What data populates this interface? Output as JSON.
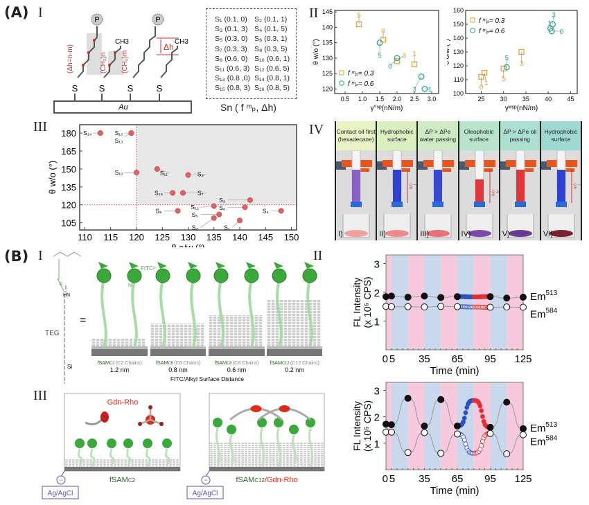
{
  "panel_labels": {
    "A": "(A)",
    "B": "(B)",
    "A_I": "I",
    "A_II": "II",
    "A_III": "III",
    "A_IV": "IV",
    "B_I": "I",
    "B_II": "II",
    "B_III": "III"
  },
  "schematic_A": {
    "substrate": "Au",
    "sulfur": "S",
    "terminal_p": "P",
    "methyl": "CH3",
    "delta_h_formula": "(Δh=n-m)",
    "chain_n": "(CH₂)n",
    "chain_m": "(CH₂)m",
    "delta_h": "Δh"
  },
  "sample_table": {
    "rows": [
      [
        "S₁ (0.1, 0)",
        "S₂ (0.1, 1)"
      ],
      [
        "S₃ (0.1, 3)",
        "S₄ (0.1, 5)"
      ],
      [
        "S₅ (0.3, 0)",
        "S₆ (0.3, 1)"
      ],
      [
        "S₇ (0.3, 3)",
        "S₈ (0.3, 5)"
      ],
      [
        "S₉ (0.6, 0)",
        "S₁₀ (0.6, 1)"
      ],
      [
        "S₁₁ (0.6, 3)",
        "S₁₂ (0.6, 5)"
      ],
      [
        "S₁₃ (0.8 ,0)",
        "S₁₄ (0.8, 1)"
      ],
      [
        "S₁₅ (0.8, 3)",
        "S₁₆ (0.8, 5)"
      ]
    ],
    "caption": "Sn ( f ᵐₚ, Δh)"
  },
  "photo_panel": {
    "columns": [
      {
        "caption": "Contact oil first (hexadecane)",
        "num": "I)",
        "header": "#e8f2c4",
        "liquid": "#8a5fc8",
        "beaker": "#f1a0a0",
        "height": ""
      },
      {
        "caption": "Hydrophobic surface",
        "num": "II)",
        "header": "#dcefc0",
        "liquid": "#2f3fd0",
        "beaker": "#f08a8a",
        "height": "7 cm"
      },
      {
        "caption": "ΔP > ΔPe water passing",
        "num": "III)",
        "header": "#cdeac4",
        "liquid": "#3a48d0",
        "beaker": "#e8707a",
        "height": ""
      },
      {
        "caption": "Oleophobic surface",
        "num": "IV)",
        "header": "#b9e4cc",
        "liquid": "#e0353a",
        "beaker": "#7a4aa8",
        "height": "4 cm"
      },
      {
        "caption": "ΔP > ΔPe oil passing",
        "num": "V)",
        "header": "#abdfd0",
        "liquid": "#e0353a",
        "beaker": "#6a3a90",
        "height": ""
      },
      {
        "caption": "Hydrophobic surface",
        "num": "VI)",
        "header": "#9ed9d2",
        "liquid": "#2f3fd0",
        "beaker": "#7a2030",
        "height": "7 cm"
      }
    ]
  },
  "schematic_B1": {
    "fitc": "FITC²⁻",
    "teg": "TEG",
    "nh": "NH",
    "hn": "HN",
    "s": "S",
    "si": "Si",
    "co2": "CO₂⁻",
    "equals": "=",
    "panels": [
      {
        "name": "fSAM",
        "sub": "C2",
        "chains": "(C2 Chains)",
        "distance": "1.2 nm"
      },
      {
        "name": "fSAM",
        "sub": "C6",
        "chains": "(C6 Chains)",
        "distance": "0.8 nm"
      },
      {
        "name": "fSAM",
        "sub": "C8",
        "chains": "(C8 Chains)",
        "distance": "0.6 nm"
      },
      {
        "name": "fSAM",
        "sub": "C12",
        "chains": "(C12 Chains)",
        "distance": "0.2 nm"
      }
    ],
    "axis_caption": "FITC/Alkyl Surface Distance"
  },
  "schematic_B3": {
    "gdn_rho": "Gdn-Rho",
    "left_caption": "fSAM",
    "left_sub": "C2",
    "right_caption": "fSAM",
    "right_sub": "C12",
    "right_suffix": "/Gdn-Rho",
    "electrode": "Ag/AgCl",
    "minus": "−"
  },
  "colors": {
    "orange": "#e8a23a",
    "teal": "#2aa79a",
    "red_dot": "#e06060",
    "pink_band": "#f7c9dc",
    "blue_band": "#c9d8ec",
    "fitc_green": "#3aa83a",
    "rho_red": "#e03020",
    "blue_dots": "#3050c0",
    "red_dots": "#e03030"
  },
  "chart_data": [
    {
      "id": "A_II_left",
      "type": "scatter",
      "xlabel": "γ°ˢᵖ(nN/m)",
      "ylabel": "θ w/o (°)",
      "xlim": [
        0.2,
        3.2
      ],
      "ylim": [
        118.5,
        145.5
      ],
      "xticks": [
        "0.5",
        "1.0",
        "1.5",
        "2.0",
        "2.5",
        "3.0"
      ],
      "yticks": [
        "120",
        "125",
        "130",
        "135",
        "140",
        "145"
      ],
      "legend": [
        {
          "label": "f ᵐₚ= 0.3",
          "marker": "square"
        },
        {
          "label": "f ᵐₚ= 0.6",
          "marker": "circle"
        }
      ],
      "legend_position": "bottom-left",
      "series": [
        {
          "name": "f=0.3",
          "marker": "square",
          "points": [
            {
              "x": 0.9,
              "y": 141,
              "label": "5",
              "lx": 0.9,
              "ly": 144
            },
            {
              "x": 1.6,
              "y": 136,
              "label": "0",
              "lx": 1.6,
              "ly": 139
            },
            {
              "x": 2.0,
              "y": 129,
              "label": "3",
              "lx": 2.2,
              "ly": 131
            },
            {
              "x": 2.5,
              "y": 128,
              "label": "1",
              "lx": 2.5,
              "ly": 131.5
            }
          ]
        },
        {
          "name": "f=0.6",
          "marker": "circle",
          "points": [
            {
              "x": 1.5,
              "y": 135,
              "label": "5",
              "lx": 1.5,
              "ly": 131
            },
            {
              "x": 2.0,
              "y": 130,
              "label": "0",
              "lx": 1.8,
              "ly": 127.5
            },
            {
              "x": 2.7,
              "y": 124,
              "label": "3",
              "lx": 2.5,
              "ly": 120
            },
            {
              "x": 2.8,
              "y": 120,
              "label": "1",
              "lx": 2.95,
              "ly": 120
            }
          ]
        }
      ]
    },
    {
      "id": "A_II_right",
      "type": "scatter",
      "xlabel": "γʷˢᵖ(nN/m)",
      "ylabel": "θ o/w (°)",
      "xlim": [
        21.5,
        46.5
      ],
      "ylim": [
        100,
        160
      ],
      "xticks": [
        "25",
        "30",
        "35",
        "40",
        "45"
      ],
      "yticks": [
        "100",
        "110",
        "120",
        "130",
        "140",
        "150",
        "160"
      ],
      "legend": [
        {
          "label": "f ᵐₚ= 0.3",
          "marker": "square"
        },
        {
          "label": "f ᵐₚ= 0.6",
          "marker": "circle"
        }
      ],
      "legend_position": "top-left",
      "series": [
        {
          "name": "f=0.3",
          "marker": "square",
          "points": [
            {
              "x": 25,
              "y": 112,
              "label": "0",
              "lx": 25,
              "ly": 105
            },
            {
              "x": 25.7,
              "y": 115,
              "label": "1",
              "lx": 26.1,
              "ly": 108
            },
            {
              "x": 30,
              "y": 118,
              "label": "5",
              "lx": 30,
              "ly": 111
            },
            {
              "x": 34,
              "y": 130,
              "label": "3",
              "lx": 34,
              "ly": 122
            }
          ]
        },
        {
          "name": "f=0.6",
          "marker": "circle",
          "points": [
            {
              "x": 30.7,
              "y": 119,
              "label": "5",
              "lx": 30.7,
              "ly": 126
            },
            {
              "x": 41,
              "y": 150,
              "label": "3",
              "lx": 41.2,
              "ly": 157
            },
            {
              "x": 40.5,
              "y": 147,
              "label": "1",
              "lx": 40.3,
              "ly": 152
            },
            {
              "x": 40.8,
              "y": 145,
              "label": "0",
              "lx": 43,
              "ly": 145
            }
          ]
        }
      ]
    },
    {
      "id": "A_III",
      "type": "scatter",
      "xlabel": "θ o/w (°)",
      "ylabel": "θ w/o (°)",
      "xlim": [
        109,
        151
      ],
      "ylim": [
        99,
        187
      ],
      "xticks": [
        "110",
        "115",
        "120",
        "125",
        "130",
        "135",
        "140",
        "145",
        "150"
      ],
      "yticks": [
        "105",
        "120",
        "135",
        "150",
        "165",
        "180"
      ],
      "thresholds": {
        "x": 120,
        "y": 120
      },
      "points": [
        {
          "label": "S₁₄",
          "x": 113,
          "y": 180,
          "lx": 110.5,
          "ly": 180
        },
        {
          "label": "S₁₅",
          "x": 119,
          "y": 180,
          "lx": 116.6,
          "ly": 180
        },
        {
          "label": "S₁₃",
          "x": 119,
          "y": 180,
          "lx": 116.6,
          "ly": 177
        },
        {
          "label": "S₁₀",
          "x": 120,
          "y": 147,
          "lx": 116.6,
          "ly": 147
        },
        {
          "label": "S₁₁",
          "x": 124,
          "y": 150,
          "lx": 125.3,
          "ly": 146.5
        },
        {
          "label": "S₉",
          "x": 130,
          "y": 145,
          "lx": 132.4,
          "ly": 145.5
        },
        {
          "label": "S₁₆",
          "x": 127,
          "y": 130,
          "lx": 124.3,
          "ly": 130
        },
        {
          "label": "S₇",
          "x": 129,
          "y": 130,
          "lx": 132.4,
          "ly": 130
        },
        {
          "label": "S₃",
          "x": 142,
          "y": 124,
          "lx": 136.6,
          "ly": 124
        },
        {
          "label": "S₈",
          "x": 141,
          "y": 118,
          "lx": 136.6,
          "ly": 118
        },
        {
          "label": "S₁₂",
          "x": 135,
          "y": 119,
          "lx": 131.3,
          "ly": 118
        },
        {
          "label": "S₅",
          "x": 136,
          "y": 112,
          "lx": 131.3,
          "ly": 112
        },
        {
          "label": "S₂",
          "x": 135,
          "y": 109,
          "lx": 131.3,
          "ly": 101
        },
        {
          "label": "S₁",
          "x": 140,
          "y": 107,
          "lx": 137.5,
          "ly": 101
        },
        {
          "label": "S₆",
          "x": 128,
          "y": 115,
          "lx": 124.3,
          "ly": 115
        },
        {
          "label": "S₄",
          "x": 148,
          "y": 115,
          "lx": 145,
          "ly": 115
        }
      ]
    },
    {
      "id": "B_II_top",
      "type": "line",
      "xlabel": "Time (min)",
      "ylabel": "FL Intensity",
      "ylabel2": "(x 10⁵ CPS)",
      "xlim": [
        0,
        125
      ],
      "ylim": [
        0,
        3.3
      ],
      "xticks": [
        0,
        5,
        35,
        65,
        95,
        125
      ],
      "yticks": [
        1,
        2,
        3
      ],
      "bands": [
        {
          "from": 0,
          "to": 5,
          "c": "pink"
        },
        {
          "from": 5,
          "to": 20,
          "c": "blue"
        },
        {
          "from": 20,
          "to": 35,
          "c": "pink"
        },
        {
          "from": 35,
          "to": 50,
          "c": "blue"
        },
        {
          "from": 50,
          "to": 65,
          "c": "pink"
        },
        {
          "from": 65,
          "to": 80,
          "c": "blue"
        },
        {
          "from": 80,
          "to": 95,
          "c": "pink"
        },
        {
          "from": 95,
          "to": 110,
          "c": "blue"
        },
        {
          "from": 110,
          "to": 125,
          "c": "pink"
        }
      ],
      "dense_segment": [
        65,
        95
      ],
      "dense_split": 80,
      "series": [
        {
          "name": "Em513",
          "label": "Em",
          "sup": "513",
          "filled": true,
          "t": [
            0,
            5,
            20,
            35,
            50,
            65,
            95,
            110,
            125
          ],
          "v": [
            1.85,
            1.87,
            1.83,
            1.87,
            1.82,
            1.85,
            1.85,
            1.8,
            1.83
          ],
          "knots_t": [
            0,
            5,
            20,
            35,
            50,
            65,
            80,
            95,
            110,
            125
          ],
          "knots_v": [
            1.85,
            1.87,
            1.83,
            1.87,
            1.82,
            1.85,
            1.84,
            1.85,
            1.8,
            1.83
          ]
        },
        {
          "name": "Em584",
          "label": "Em",
          "sup": "584",
          "filled": false,
          "t": [
            0,
            5,
            20,
            35,
            50,
            65,
            95,
            110,
            125
          ],
          "v": [
            1.51,
            1.5,
            1.5,
            1.49,
            1.51,
            1.5,
            1.48,
            1.49,
            1.48
          ],
          "knots_t": [
            0,
            5,
            20,
            35,
            50,
            65,
            80,
            95,
            110,
            125
          ],
          "knots_v": [
            1.51,
            1.5,
            1.5,
            1.49,
            1.51,
            1.5,
            1.49,
            1.48,
            1.49,
            1.48
          ]
        }
      ]
    },
    {
      "id": "B_II_bottom",
      "type": "line",
      "xlabel": "Time (min)",
      "ylabel": "FL Intensity",
      "ylabel2": "(x 10⁵ CPS)",
      "xlim": [
        0,
        125
      ],
      "ylim": [
        0,
        3.3
      ],
      "xticks": [
        0,
        5,
        35,
        65,
        95,
        125
      ],
      "yticks": [
        1,
        2,
        3
      ],
      "bands": [
        {
          "from": 0,
          "to": 5,
          "c": "pink"
        },
        {
          "from": 5,
          "to": 20,
          "c": "blue"
        },
        {
          "from": 20,
          "to": 35,
          "c": "pink"
        },
        {
          "from": 35,
          "to": 50,
          "c": "blue"
        },
        {
          "from": 50,
          "to": 65,
          "c": "pink"
        },
        {
          "from": 65,
          "to": 80,
          "c": "blue"
        },
        {
          "from": 80,
          "to": 95,
          "c": "pink"
        },
        {
          "from": 95,
          "to": 110,
          "c": "blue"
        },
        {
          "from": 110,
          "to": 125,
          "c": "pink"
        }
      ],
      "dense_segment": [
        65,
        95
      ],
      "dense_split": 80,
      "series": [
        {
          "name": "Em513",
          "label": "Em",
          "sup": "513",
          "filled": true,
          "t": [
            0,
            5,
            20,
            35,
            50,
            65,
            95,
            110,
            125
          ],
          "v": [
            1.72,
            1.7,
            2.7,
            1.65,
            2.65,
            1.65,
            1.6,
            2.55,
            1.55
          ],
          "knots_t": [
            0,
            5,
            20,
            35,
            50,
            65,
            80,
            95,
            110,
            125
          ],
          "knots_v": [
            1.72,
            1.7,
            2.7,
            1.65,
            2.65,
            1.65,
            2.62,
            1.6,
            2.55,
            1.55
          ]
        },
        {
          "name": "Em584",
          "label": "Em",
          "sup": "584",
          "filled": false,
          "t": [
            0,
            5,
            20,
            35,
            50,
            65,
            95,
            110,
            125
          ],
          "v": [
            1.42,
            1.42,
            0.65,
            1.4,
            0.62,
            1.35,
            1.37,
            0.6,
            1.32
          ],
          "knots_t": [
            0,
            5,
            20,
            35,
            50,
            65,
            80,
            95,
            110,
            125
          ],
          "knots_v": [
            1.42,
            1.42,
            0.65,
            1.4,
            0.62,
            1.35,
            0.62,
            1.37,
            0.6,
            1.32
          ]
        }
      ]
    }
  ]
}
